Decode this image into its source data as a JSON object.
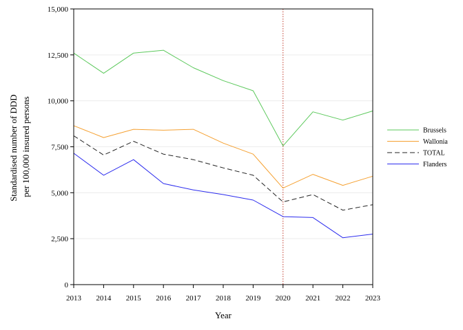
{
  "chart_data": {
    "type": "line",
    "title": "",
    "xlabel": "Year",
    "ylabel": [
      "Standardised number of DDD",
      "per 100,000 insured persons"
    ],
    "x": [
      "2013",
      "2014",
      "2015",
      "2016",
      "2017",
      "2018",
      "2019",
      "2020",
      "2021",
      "2022",
      "2023"
    ],
    "ylim": [
      0,
      15000
    ],
    "yticks": [
      "0",
      "2,500",
      "5,000",
      "7,500",
      "10,000",
      "12,500",
      "15,000"
    ],
    "ytick_values": [
      0,
      2500,
      5000,
      7500,
      10000,
      12500,
      15000
    ],
    "grid": "horizontal",
    "legend_position": "right",
    "reference_line": {
      "x": "2020",
      "color": "#c0392b",
      "style": "dotted"
    },
    "series": [
      {
        "name": "Brussels",
        "color": "#5ac85a",
        "dash": "solid",
        "values": [
          12600,
          11500,
          12600,
          12750,
          11800,
          11100,
          10550,
          7550,
          9400,
          8950,
          9450
        ]
      },
      {
        "name": "Wallonia",
        "color": "#f5a030",
        "dash": "solid",
        "values": [
          8650,
          8000,
          8450,
          8400,
          8450,
          7700,
          7100,
          5250,
          6000,
          5400,
          5900
        ]
      },
      {
        "name": "TOTAL",
        "color": "#222222",
        "dash": "dashed",
        "values": [
          8100,
          7050,
          7800,
          7100,
          6800,
          6350,
          5950,
          4500,
          4900,
          4050,
          4350
        ]
      },
      {
        "name": "Flanders",
        "color": "#2a2aee",
        "dash": "solid",
        "values": [
          7150,
          5950,
          6800,
          5500,
          5150,
          4900,
          4600,
          3700,
          3650,
          2550,
          2750
        ]
      }
    ]
  }
}
